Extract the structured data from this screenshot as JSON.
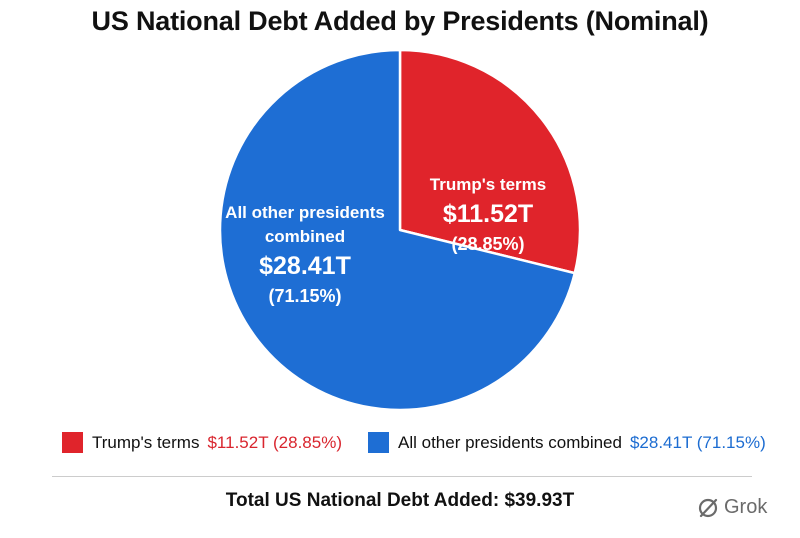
{
  "chart_data": {
    "type": "pie",
    "title": "US National Debt Added by Presidents (Nominal)",
    "slices": [
      {
        "label_lines": [
          "Trump's terms"
        ],
        "value": 11.52,
        "value_label": "$11.52T",
        "percent_label": "(28.85%)",
        "color": "#e0242b"
      },
      {
        "label_lines": [
          "All other presidents",
          "combined"
        ],
        "value": 28.41,
        "value_label": "$28.41T",
        "percent_label": "(71.15%)",
        "color": "#1e6ed4"
      }
    ],
    "legend_position": "bottom"
  },
  "legend": {
    "items": [
      {
        "label": "Trump's terms",
        "value": "$11.52T (28.85%)",
        "color": "#e0242b"
      },
      {
        "label": "All other presidents combined",
        "value": "$28.41T (71.15%)",
        "color": "#1e6ed4"
      }
    ]
  },
  "footer": {
    "total": "Total US National Debt Added: $39.93T"
  },
  "watermark": {
    "text": "Grok",
    "icon": "grok-logo-icon"
  }
}
